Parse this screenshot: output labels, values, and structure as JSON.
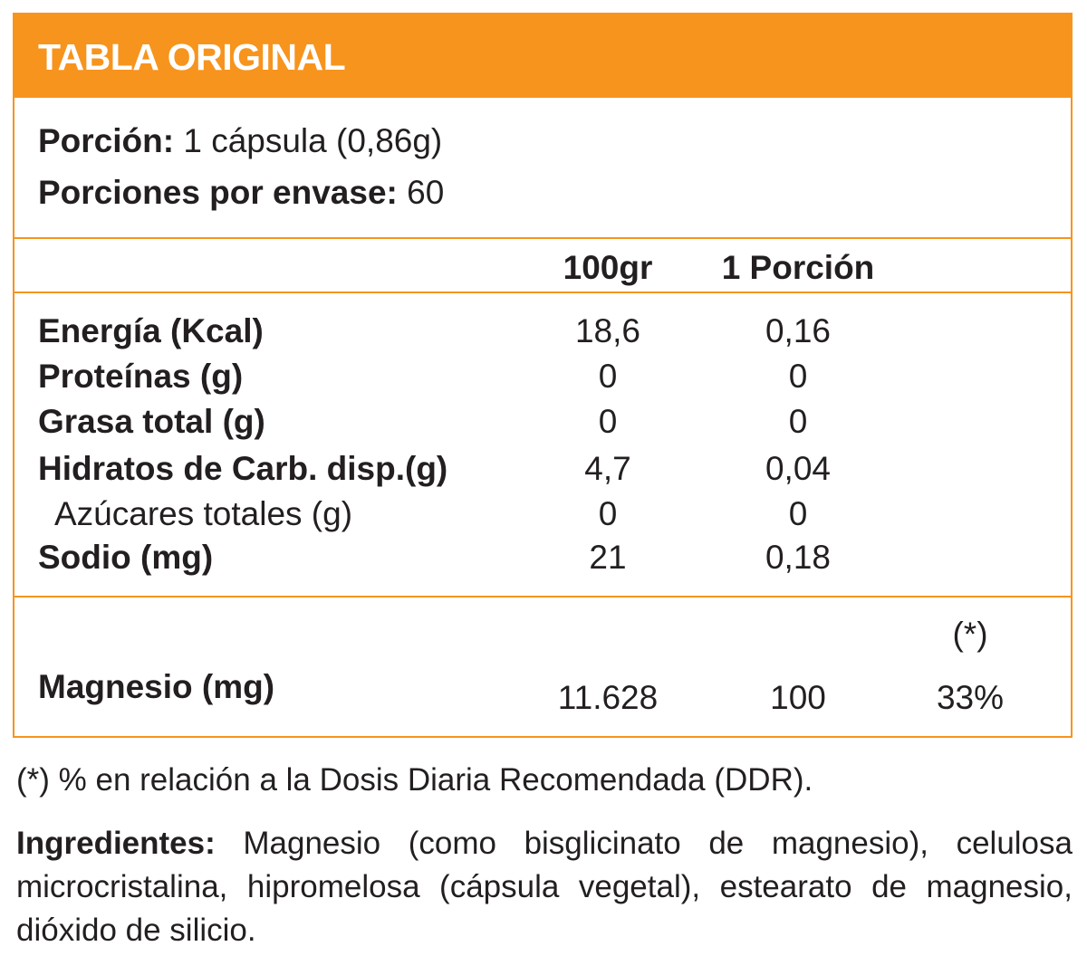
{
  "header": {
    "title": "TABLA ORIGINAL"
  },
  "serving": {
    "portion_label": "Porción:",
    "portion_value": "1 cápsula (0,86g)",
    "per_container_label": "Porciones por envase:",
    "per_container_value": "60"
  },
  "columns": {
    "col1": "100gr",
    "col2": "1 Porción"
  },
  "nutrients": [
    {
      "label": "Energía (Kcal)",
      "per100": "18,6",
      "perPortion": "0,16"
    },
    {
      "label": "Proteínas (g)",
      "per100": "0",
      "perPortion": "0"
    },
    {
      "label": "Grasa total (g)",
      "per100": "0",
      "perPortion": "0"
    },
    {
      "label": "Hidratos de Carb. disp.(g)",
      "per100": "4,7",
      "perPortion": "0,04"
    },
    {
      "label": "Azúcares totales (g)",
      "per100": "0",
      "perPortion": "0"
    },
    {
      "label": "Sodio (mg)",
      "per100": "21",
      "perPortion": "0,18"
    }
  ],
  "magnesium": {
    "label": "Magnesio (mg)",
    "per100": "11.628",
    "perPortion": "100",
    "ddr_header": "(*)",
    "ddr_value": "33%"
  },
  "footnote": "(*) % en relación a la Dosis Diaria Recomendada (DDR).",
  "ingredients": {
    "label": "Ingredientes:",
    "text": "Magnesio (como bisglicinato de magnesio), celulosa microcristalina, hipromelosa (cápsula vegetal), estearato de magnesio, dióxido de silicio."
  },
  "colors": {
    "accent": "#f7941d",
    "text": "#231f20"
  }
}
